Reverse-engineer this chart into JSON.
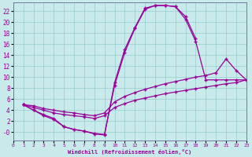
{
  "xlabel": "Windchill (Refroidissement éolien,°C)",
  "background_color": "#c8eaea",
  "line_color": "#990099",
  "grid_color": "#99cccc",
  "xlim": [
    0,
    23
  ],
  "ylim": [
    -1.5,
    23.5
  ],
  "xticks": [
    0,
    1,
    2,
    3,
    4,
    5,
    6,
    7,
    8,
    9,
    10,
    11,
    12,
    13,
    14,
    15,
    16,
    17,
    18,
    19,
    20,
    21,
    22,
    23
  ],
  "yticks": [
    0,
    2,
    4,
    6,
    8,
    10,
    12,
    14,
    16,
    18,
    20,
    22
  ],
  "ytick_labels": [
    "-0",
    "2",
    "4",
    "6",
    "8",
    "10",
    "12",
    "14",
    "16",
    "18",
    "20",
    "22"
  ],
  "curve_upper_x": [
    1,
    2,
    3,
    4,
    5,
    6,
    7,
    8,
    9,
    10,
    11,
    12,
    13,
    14,
    15,
    16,
    17,
    18
  ],
  "curve_upper_y": [
    5,
    4,
    3.2,
    2.5,
    1.0,
    0.5,
    0.2,
    -0.3,
    -0.5,
    9,
    15,
    19,
    22.5,
    23,
    23,
    22.8,
    21,
    17
  ],
  "curve_lower_x": [
    1,
    2,
    3,
    4,
    5,
    6,
    7,
    8,
    9,
    10,
    11,
    12,
    13,
    14,
    15,
    16,
    17,
    18,
    19,
    20,
    21,
    22,
    23
  ],
  "curve_lower_y": [
    5,
    4.0,
    3.0,
    2.3,
    1.0,
    0.5,
    0.2,
    -0.2,
    -0.4,
    8.5,
    14.5,
    18.8,
    22.3,
    23,
    23,
    22.8,
    20.5,
    16.5,
    9.5,
    9.5,
    9.5,
    9.5,
    9.5
  ],
  "line_mid_x": [
    1,
    2,
    3,
    4,
    5,
    6,
    7,
    8,
    9,
    10,
    11,
    12,
    13,
    14,
    15,
    16,
    17,
    18,
    19,
    20,
    21,
    22,
    23
  ],
  "line_mid_y": [
    5,
    4.8,
    4.3,
    4.0,
    3.7,
    3.5,
    3.2,
    3.0,
    3.5,
    5.5,
    6.5,
    7.2,
    7.8,
    8.3,
    8.8,
    9.2,
    9.6,
    10.0,
    10.3,
    10.8,
    13.3,
    11.2,
    9.5
  ],
  "line_low_x": [
    1,
    2,
    3,
    4,
    5,
    6,
    7,
    8,
    9,
    10,
    11,
    12,
    13,
    14,
    15,
    16,
    17,
    18,
    19,
    20,
    21,
    22,
    23
  ],
  "line_low_y": [
    5,
    4.5,
    4.0,
    3.5,
    3.2,
    3.0,
    2.8,
    2.5,
    3.0,
    4.5,
    5.2,
    5.8,
    6.2,
    6.6,
    7.0,
    7.3,
    7.6,
    7.9,
    8.2,
    8.5,
    8.8,
    9.0,
    9.5
  ]
}
